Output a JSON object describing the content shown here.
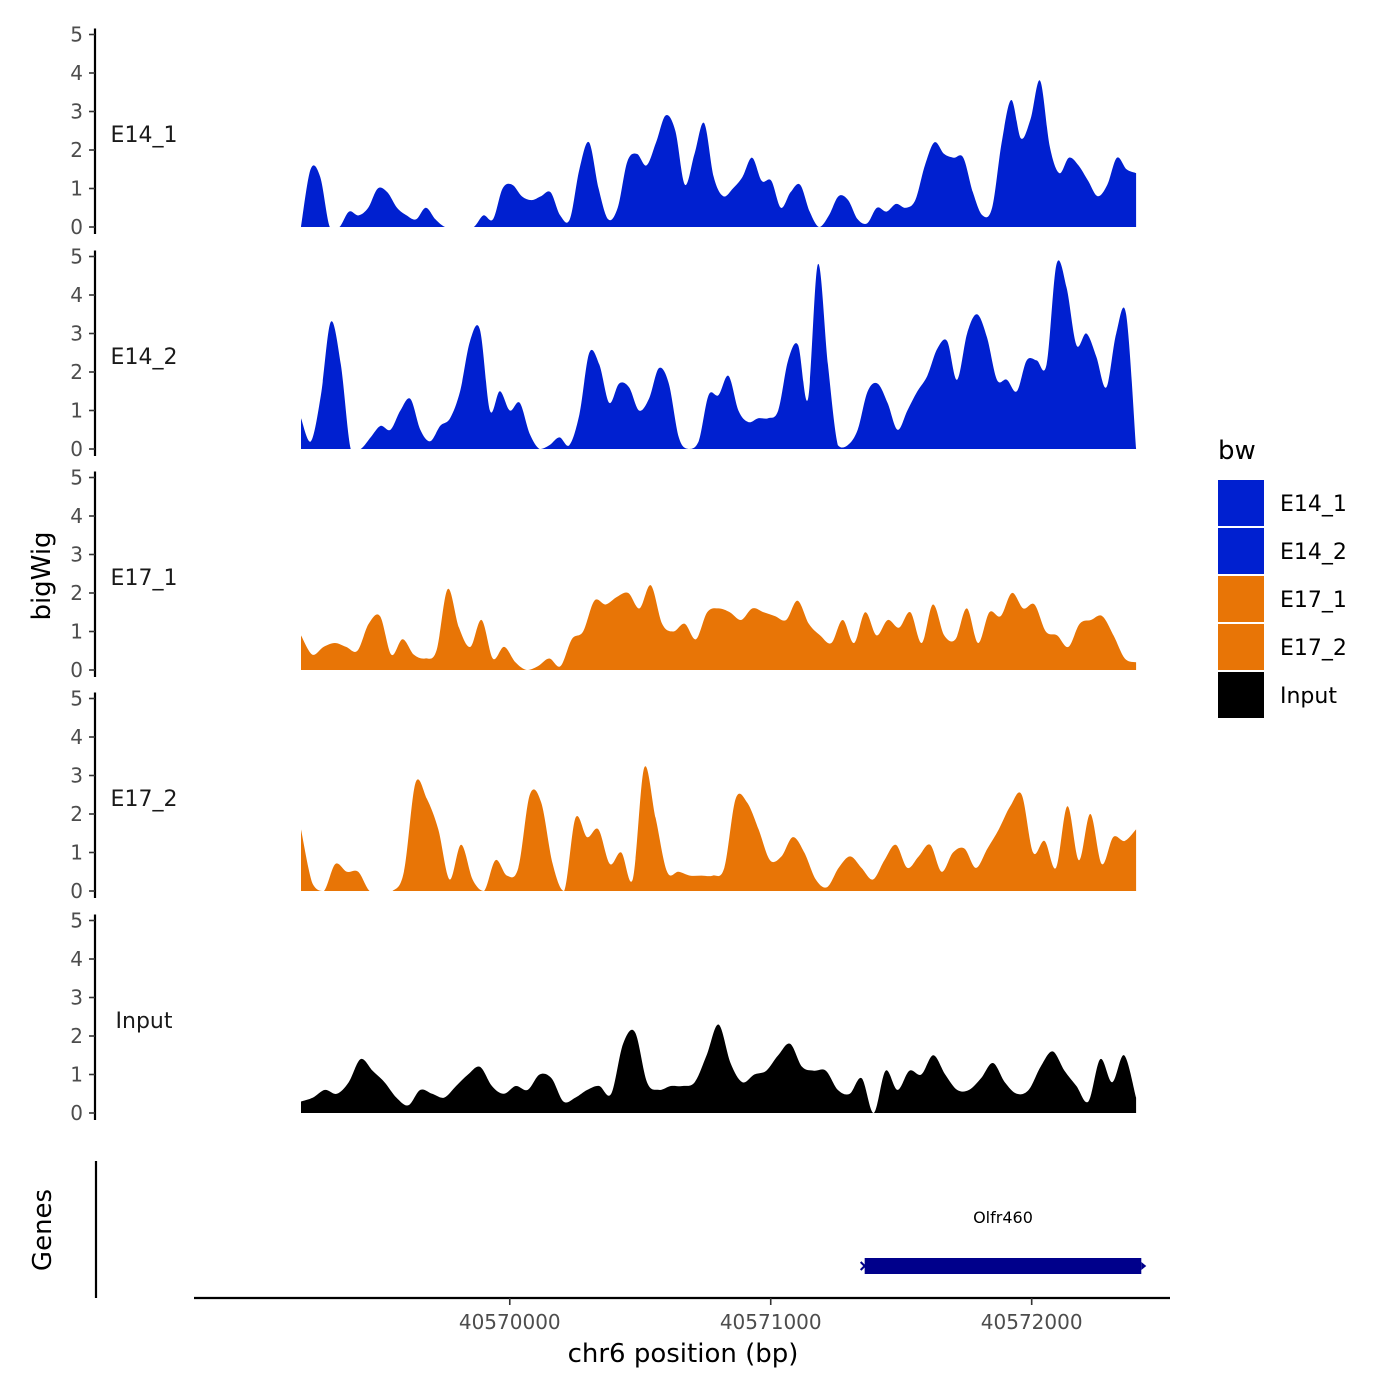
{
  "chart_data": {
    "type": "area",
    "title": "",
    "xlabel": "chr6 position (bp)",
    "ylabel": "bigWig",
    "genes_label": "Genes",
    "x_range": [
      40569200,
      40572400
    ],
    "xlim": [
      40568790,
      40572530
    ],
    "x_ticks": [
      {
        "value": 40570000,
        "label": "40570000"
      },
      {
        "value": 40571000,
        "label": "40571000"
      },
      {
        "value": 40572000,
        "label": "40572000"
      }
    ],
    "ylim": [
      0,
      5
    ],
    "y_ticks": [
      "0",
      "1",
      "2",
      "3",
      "4",
      "5"
    ],
    "legend": {
      "title": "bw",
      "position": "right",
      "items": [
        {
          "label": "E14_1",
          "color": "#0020D0"
        },
        {
          "label": "E14_2",
          "color": "#0020D0"
        },
        {
          "label": "E17_1",
          "color": "#E87506"
        },
        {
          "label": "E17_2",
          "color": "#E87506"
        },
        {
          "label": "Input",
          "color": "#000000"
        }
      ]
    },
    "series": [
      {
        "name": "E14_1",
        "color": "#0020D0",
        "values": [
          0,
          1.5,
          1.3,
          0,
          0,
          0.4,
          0.3,
          0.5,
          1,
          0.9,
          0.5,
          0.3,
          0.2,
          0.5,
          0.2,
          0,
          0,
          0,
          0,
          0.3,
          0.2,
          1,
          1.1,
          0.8,
          0.7,
          0.8,
          0.9,
          0.3,
          0.2,
          1.5,
          2.2,
          1,
          0.2,
          0.5,
          1.7,
          1.9,
          1.6,
          2.2,
          2.9,
          2.5,
          1.1,
          1.9,
          2.7,
          1.3,
          0.8,
          1,
          1.3,
          1.8,
          1.2,
          1.2,
          0.5,
          0.9,
          1.1,
          0.4,
          0,
          0.3,
          0.8,
          0.7,
          0.2,
          0.1,
          0.5,
          0.4,
          0.6,
          0.5,
          0.7,
          1.6,
          2.2,
          1.9,
          1.8,
          1.8,
          0.9,
          0.3,
          0.5,
          2.2,
          3.3,
          2.3,
          2.8,
          3.8,
          2.1,
          1.4,
          1.8,
          1.6,
          1.2,
          0.8,
          1.1,
          1.8,
          1.5,
          1.4
        ]
      },
      {
        "name": "E14_2",
        "color": "#0020D0",
        "values": [
          0.8,
          0.2,
          1.4,
          3.3,
          2.2,
          0,
          0,
          0.3,
          0.6,
          0.5,
          1,
          1.3,
          0.5,
          0.2,
          0.6,
          0.8,
          1.5,
          2.8,
          3.1,
          1,
          1.5,
          1,
          1.2,
          0.4,
          0,
          0.1,
          0.3,
          0.1,
          0.9,
          2.5,
          2.2,
          1.2,
          1.7,
          1.6,
          1,
          1.3,
          2.1,
          1.7,
          0.3,
          0,
          0.2,
          1.4,
          1.4,
          1.9,
          1,
          0.7,
          0.8,
          0.8,
          1,
          2.3,
          2.7,
          1.3,
          4.8,
          2.2,
          0.1,
          0.1,
          0.5,
          1.5,
          1.7,
          1.2,
          0.5,
          1,
          1.5,
          1.9,
          2.6,
          2.8,
          1.8,
          3,
          3.5,
          2.9,
          1.8,
          1.8,
          1.5,
          2.3,
          2.3,
          2.2,
          4.8,
          4.2,
          2.7,
          3,
          2.4,
          1.6,
          3,
          3.5,
          0
        ]
      },
      {
        "name": "E17_1",
        "color": "#E87506",
        "values": [
          0.9,
          0.4,
          0.6,
          0.7,
          0.6,
          0.5,
          1.2,
          1.4,
          0.4,
          0.8,
          0.4,
          0.3,
          0.5,
          2.1,
          1.1,
          0.6,
          1.3,
          0.3,
          0.6,
          0.2,
          0,
          0.1,
          0.3,
          0.1,
          0.8,
          1,
          1.8,
          1.7,
          1.9,
          2,
          1.6,
          2.2,
          1.2,
          1,
          1.2,
          0.8,
          1.5,
          1.6,
          1.5,
          1.3,
          1.6,
          1.5,
          1.4,
          1.3,
          1.8,
          1.2,
          0.9,
          0.7,
          1.3,
          0.7,
          1.5,
          0.9,
          1.3,
          1.1,
          1.5,
          0.7,
          1.7,
          0.9,
          0.8,
          1.6,
          0.7,
          1.5,
          1.4,
          2,
          1.6,
          1.7,
          1,
          0.9,
          0.6,
          1.2,
          1.3,
          1.4,
          0.9,
          0.3,
          0.2
        ]
      },
      {
        "name": "E17_2",
        "color": "#E87506",
        "values": [
          1.6,
          0.2,
          0,
          0.7,
          0.5,
          0.5,
          0,
          0,
          0,
          0.5,
          2.8,
          2.4,
          1.6,
          0.3,
          1.2,
          0.3,
          0,
          0.8,
          0.4,
          0.6,
          2.5,
          2.3,
          0.7,
          0,
          1.9,
          1.4,
          1.6,
          0.7,
          1,
          0.3,
          3.2,
          1.9,
          0.5,
          0.5,
          0.4,
          0.4,
          0.4,
          0.6,
          2.4,
          2.3,
          1.6,
          0.8,
          0.9,
          1.4,
          1,
          0.3,
          0.1,
          0.6,
          0.9,
          0.6,
          0.3,
          0.8,
          1.2,
          0.6,
          0.9,
          1.2,
          0.5,
          1,
          1.1,
          0.6,
          1.1,
          1.6,
          2.2,
          2.5,
          1,
          1.3,
          0.6,
          2.2,
          0.8,
          2,
          0.7,
          1.4,
          1.3,
          1.6
        ]
      },
      {
        "name": "Input",
        "color": "#000000",
        "values": [
          0.3,
          0.4,
          0.6,
          0.5,
          0.8,
          1.4,
          1.1,
          0.8,
          0.4,
          0.2,
          0.6,
          0.5,
          0.4,
          0.7,
          1,
          1.2,
          0.7,
          0.5,
          0.7,
          0.6,
          1,
          0.9,
          0.3,
          0.4,
          0.6,
          0.7,
          0.5,
          1.8,
          2.1,
          0.8,
          0.6,
          0.7,
          0.7,
          0.8,
          1.5,
          2.3,
          1.3,
          0.8,
          1,
          1.1,
          1.5,
          1.8,
          1.2,
          1.1,
          1.1,
          0.6,
          0.5,
          0.9,
          0,
          1.1,
          0.6,
          1.1,
          1,
          1.5,
          1,
          0.6,
          0.6,
          0.9,
          1.3,
          0.8,
          0.5,
          0.6,
          1.2,
          1.6,
          1.1,
          0.7,
          0.3,
          1.4,
          0.8,
          1.5,
          0.4
        ]
      }
    ],
    "genes": [
      {
        "name": "Olfr460",
        "start": 40571360,
        "end": 40572420,
        "strand": "+",
        "color": "#00008B"
      }
    ]
  }
}
